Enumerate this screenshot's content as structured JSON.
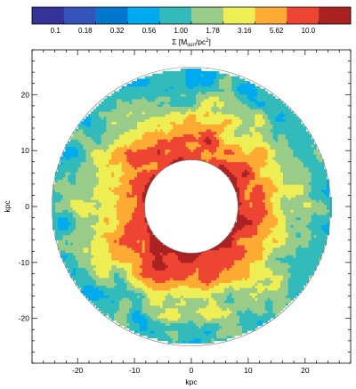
{
  "chart_data": {
    "type": "heatmap",
    "title": "",
    "xlabel": "kpc",
    "ylabel": "kpc",
    "xlim": [
      -28,
      28
    ],
    "ylim": [
      -28,
      28
    ],
    "x_ticks": [
      -20,
      -10,
      0,
      10,
      20
    ],
    "y_ticks": [
      -20,
      -10,
      0,
      10,
      20
    ],
    "inner_radius_kpc": 8.2,
    "outer_radius_kpc": 24.5,
    "colorbar": {
      "label": "Σ [Mₛᵤₙ/pc²]",
      "label_parts": [
        "Σ [M",
        "sun",
        "/pc",
        "2",
        "]"
      ],
      "tick_labels": [
        "0.1",
        "0.18",
        "0.32",
        "0.56",
        "1.00",
        "1.78",
        "3.16",
        "5.62",
        "10.0"
      ],
      "colors": [
        "#333399",
        "#3355bb",
        "#0077cc",
        "#00aaee",
        "#33bbbb",
        "#99cc88",
        "#eeee55",
        "#ffaa33",
        "#ee4433",
        "#aa2222"
      ]
    },
    "radial_profile": [
      {
        "r": 8.2,
        "band": 9
      },
      {
        "r": 10,
        "band": 8
      },
      {
        "r": 12,
        "band": 8
      },
      {
        "r": 14,
        "band": 7
      },
      {
        "r": 16,
        "band": 6
      },
      {
        "r": 18,
        "band": 5
      },
      {
        "r": 20,
        "band": 5
      },
      {
        "r": 22,
        "band": 4
      },
      {
        "r": 24.5,
        "band": 4
      }
    ]
  }
}
